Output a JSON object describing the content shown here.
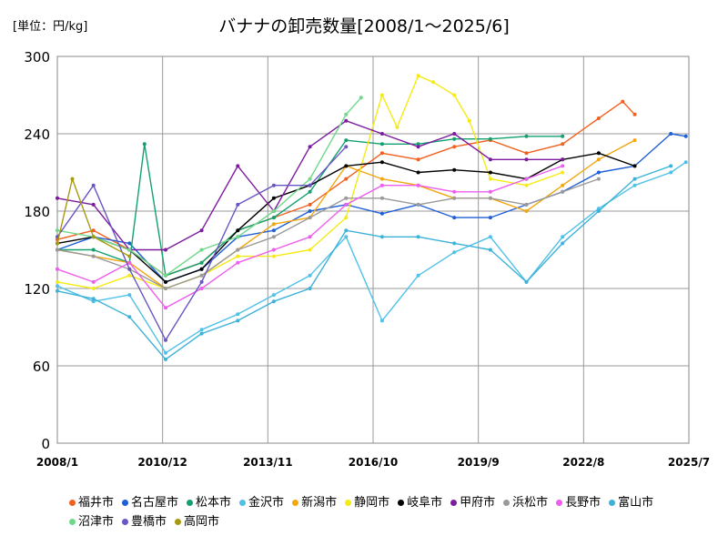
{
  "page": {
    "unit_label": "[単位：円/kg]"
  },
  "chart_data": {
    "type": "line",
    "title": "バナナの卸売数量[2008/1～2025/6]",
    "xlabel": "",
    "ylabel": "",
    "x_ticks": [
      "2008/1",
      "2010/12",
      "2013/11",
      "2016/10",
      "2019/9",
      "2022/8",
      "2025/7"
    ],
    "xlim": [
      "2008-01",
      "2025-07"
    ],
    "y_ticks": [
      0,
      60,
      120,
      180,
      240,
      300
    ],
    "ylim": [
      0,
      300
    ],
    "grid": true,
    "legend_position": "bottom",
    "series": [
      {
        "name": "福井市",
        "color": "#f0611f",
        "x": [
          "2008-01",
          "2009-01",
          "2010-01",
          "2011-01",
          "2012-01",
          "2013-01",
          "2014-01",
          "2015-01",
          "2016-01",
          "2017-01",
          "2018-01",
          "2019-01",
          "2020-01",
          "2021-01",
          "2022-01",
          "2023-01",
          "2023-09",
          "2024-01"
        ],
        "values": [
          158,
          165,
          150,
          130,
          140,
          165,
          175,
          185,
          205,
          225,
          220,
          230,
          235,
          225,
          232,
          252,
          265,
          255
        ]
      },
      {
        "name": "名古屋市",
        "color": "#1f5fd6",
        "x": [
          "2008-01",
          "2009-01",
          "2010-01",
          "2011-01",
          "2012-01",
          "2013-01",
          "2014-01",
          "2015-01",
          "2016-01",
          "2017-01",
          "2018-01",
          "2019-01",
          "2020-01",
          "2021-01",
          "2022-01",
          "2023-01",
          "2024-01",
          "2025-01",
          "2025-06"
        ],
        "values": [
          150,
          160,
          155,
          125,
          135,
          160,
          165,
          180,
          185,
          178,
          185,
          175,
          175,
          185,
          195,
          210,
          215,
          240,
          238
        ]
      },
      {
        "name": "松本市",
        "color": "#12a06e",
        "x": [
          "2008-01",
          "2009-01",
          "2010-01",
          "2010-06",
          "2011-01",
          "2012-01",
          "2013-01",
          "2014-01",
          "2015-01",
          "2016-01",
          "2017-01",
          "2018-01",
          "2019-01",
          "2020-01",
          "2021-01",
          "2022-01"
        ],
        "values": [
          150,
          150,
          140,
          232,
          130,
          140,
          165,
          175,
          195,
          235,
          232,
          232,
          236,
          236,
          238,
          238
        ]
      },
      {
        "name": "金沢市",
        "color": "#4fc1e9",
        "x": [
          "2008-01",
          "2009-01",
          "2010-01",
          "2011-01",
          "2012-01",
          "2013-01",
          "2014-01",
          "2015-01",
          "2016-01",
          "2017-01",
          "2018-01",
          "2019-01",
          "2020-01",
          "2021-01",
          "2022-01",
          "2023-01",
          "2024-01",
          "2025-01",
          "2025-06"
        ],
        "values": [
          122,
          110,
          115,
          70,
          88,
          100,
          115,
          130,
          160,
          95,
          130,
          148,
          160,
          125,
          160,
          182,
          200,
          210,
          218
        ]
      },
      {
        "name": "新潟市",
        "color": "#f2a70f",
        "x": [
          "2008-01",
          "2009-01",
          "2010-01",
          "2011-01",
          "2012-01",
          "2013-01",
          "2014-01",
          "2015-01",
          "2016-01",
          "2017-01",
          "2018-01",
          "2019-01",
          "2020-01",
          "2021-01",
          "2022-01",
          "2023-01",
          "2024-01"
        ],
        "values": [
          150,
          145,
          140,
          120,
          130,
          150,
          170,
          175,
          215,
          205,
          200,
          190,
          190,
          180,
          200,
          220,
          235
        ]
      },
      {
        "name": "静岡市",
        "color": "#f5ea14",
        "x": [
          "2008-01",
          "2009-01",
          "2010-01",
          "2011-01",
          "2012-01",
          "2013-01",
          "2014-01",
          "2015-01",
          "2016-01",
          "2017-01",
          "2017-06",
          "2018-01",
          "2018-06",
          "2019-01",
          "2019-06",
          "2020-01",
          "2021-01",
          "2022-01"
        ],
        "values": [
          125,
          120,
          130,
          120,
          130,
          145,
          145,
          150,
          175,
          270,
          245,
          285,
          280,
          270,
          250,
          205,
          200,
          210
        ]
      },
      {
        "name": "岐阜市",
        "color": "#000000",
        "x": [
          "2008-01",
          "2009-01",
          "2010-01",
          "2011-01",
          "2012-01",
          "2013-01",
          "2014-01",
          "2015-01",
          "2016-01",
          "2017-01",
          "2018-01",
          "2019-01",
          "2020-01",
          "2021-01",
          "2022-01",
          "2023-01",
          "2024-01"
        ],
        "values": [
          155,
          160,
          150,
          125,
          135,
          165,
          190,
          200,
          215,
          218,
          210,
          212,
          210,
          205,
          220,
          225,
          215
        ]
      },
      {
        "name": "甲府市",
        "color": "#7d1a9e",
        "x": [
          "2008-01",
          "2009-01",
          "2010-01",
          "2011-01",
          "2012-01",
          "2013-01",
          "2014-01",
          "2015-01",
          "2016-01",
          "2017-01",
          "2018-01",
          "2019-01",
          "2020-01",
          "2021-01",
          "2022-01"
        ],
        "values": [
          190,
          185,
          150,
          150,
          165,
          215,
          180,
          230,
          250,
          240,
          230,
          240,
          220,
          220,
          220
        ]
      },
      {
        "name": "浜松市",
        "color": "#9a9a9a",
        "x": [
          "2008-01",
          "2009-01",
          "2010-01",
          "2011-01",
          "2012-01",
          "2013-01",
          "2014-01",
          "2015-01",
          "2016-01",
          "2017-01",
          "2018-01",
          "2019-01",
          "2020-01",
          "2021-01",
          "2022-01",
          "2023-01"
        ],
        "values": [
          150,
          145,
          135,
          120,
          130,
          150,
          160,
          175,
          190,
          190,
          185,
          190,
          190,
          185,
          195,
          205
        ]
      },
      {
        "name": "長野市",
        "color": "#ee5ded",
        "x": [
          "2008-01",
          "2009-01",
          "2010-01",
          "2011-01",
          "2012-01",
          "2013-01",
          "2014-01",
          "2015-01",
          "2016-01",
          "2017-01",
          "2018-01",
          "2019-01",
          "2020-01",
          "2021-01",
          "2022-01"
        ],
        "values": [
          135,
          125,
          140,
          105,
          120,
          140,
          150,
          160,
          185,
          200,
          200,
          195,
          195,
          205,
          215
        ]
      },
      {
        "name": "富山市",
        "color": "#3cb2d8",
        "x": [
          "2008-01",
          "2009-01",
          "2010-01",
          "2011-01",
          "2012-01",
          "2013-01",
          "2014-01",
          "2015-01",
          "2016-01",
          "2017-01",
          "2018-01",
          "2019-01",
          "2020-01",
          "2021-01",
          "2022-01",
          "2023-01",
          "2024-01",
          "2025-01"
        ],
        "values": [
          118,
          112,
          98,
          65,
          85,
          95,
          110,
          120,
          165,
          160,
          160,
          155,
          150,
          125,
          155,
          180,
          205,
          215
        ]
      },
      {
        "name": "沼津市",
        "color": "#6fd889",
        "x": [
          "2008-01",
          "2009-01",
          "2010-01",
          "2011-01",
          "2012-01",
          "2013-01",
          "2014-01",
          "2015-01",
          "2016-01",
          "2016-06"
        ],
        "values": [
          165,
          160,
          150,
          130,
          150,
          160,
          180,
          205,
          255,
          268
        ]
      },
      {
        "name": "豊橋市",
        "color": "#6a55c4",
        "x": [
          "2008-01",
          "2009-01",
          "2010-01",
          "2011-01",
          "2012-01",
          "2013-01",
          "2014-01",
          "2015-01",
          "2016-01"
        ],
        "values": [
          160,
          200,
          135,
          80,
          125,
          185,
          200,
          200,
          230
        ]
      },
      {
        "name": "高岡市",
        "color": "#a89a10",
        "x": [
          "2008-01",
          "2008-06",
          "2009-01",
          "2010-01"
        ],
        "values": [
          155,
          205,
          160,
          145
        ]
      }
    ]
  }
}
